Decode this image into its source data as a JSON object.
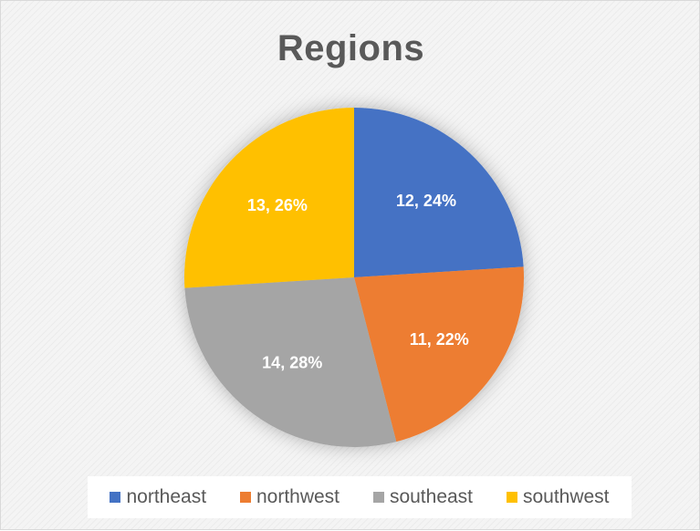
{
  "chart_data": {
    "type": "pie",
    "title": "Regions",
    "categories": [
      "northeast",
      "northwest",
      "southeast",
      "southwest"
    ],
    "values": [
      12,
      11,
      14,
      13
    ],
    "percentages": [
      "24%",
      "22%",
      "28%",
      "26%"
    ],
    "data_labels": [
      "12, 24%",
      "11, 22%",
      "14, 28%",
      "13, 26%"
    ],
    "colors": [
      "#4472c4",
      "#ed7d31",
      "#a5a5a5",
      "#ffc000"
    ],
    "legend_position": "bottom",
    "start_angle": "12 o'clock, clockwise"
  }
}
